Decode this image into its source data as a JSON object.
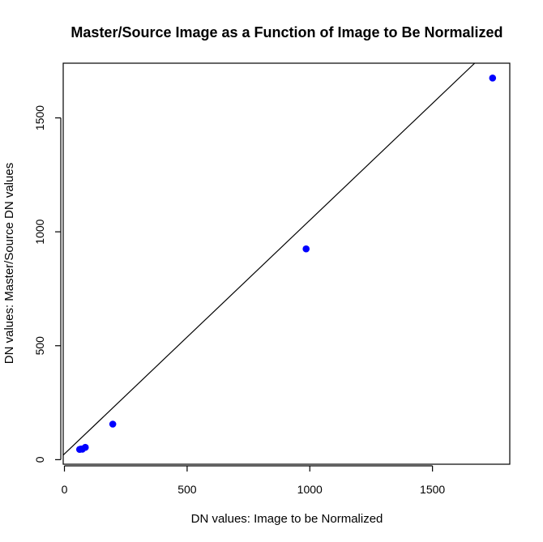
{
  "chart_data": {
    "type": "scatter",
    "title": "Master/Source Image as a Function of Image to Be Normalized",
    "xlabel": "DN values: Image to be Normalized",
    "ylabel": "DN values: Master/Source DN values",
    "xlim": [
      -5,
      1815
    ],
    "ylim": [
      -20,
      1740
    ],
    "x_ticks": [
      0,
      500,
      1000,
      1500
    ],
    "x_tick_labels": [
      "0",
      "500",
      "1000",
      "1500"
    ],
    "y_ticks": [
      0,
      500,
      1000,
      1500
    ],
    "y_tick_labels": [
      "0",
      "500",
      "1000",
      "1500"
    ],
    "grid": false,
    "points": [
      {
        "x": 62,
        "y": 45
      },
      {
        "x": 68,
        "y": 47
      },
      {
        "x": 73,
        "y": 46
      },
      {
        "x": 85,
        "y": 54
      },
      {
        "x": 197,
        "y": 156
      },
      {
        "x": 985,
        "y": 925
      },
      {
        "x": 1745,
        "y": 1675
      }
    ],
    "point_color": "#0000ff",
    "line": {
      "x1": -5,
      "y1": 20,
      "x2": 1672,
      "y2": 1740,
      "color": "#000000"
    }
  }
}
